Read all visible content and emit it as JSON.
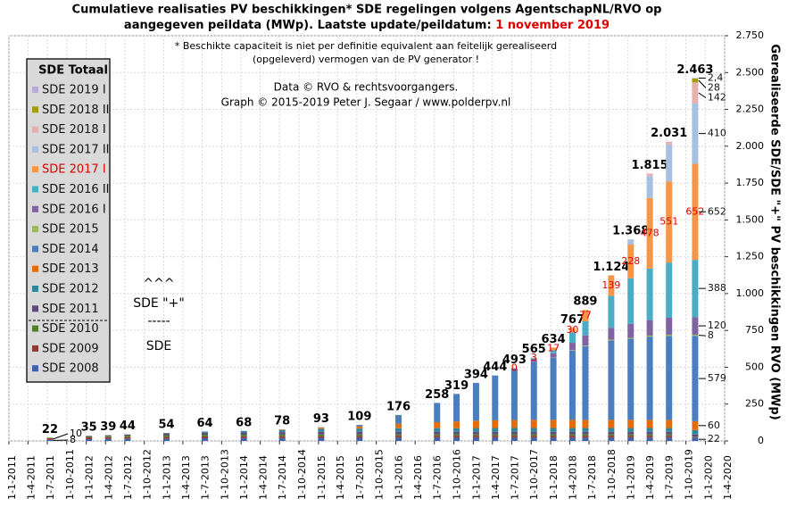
{
  "chart_data": {
    "type": "stacked-bar",
    "title": [
      "Cumulatieve realisaties PV beschikkingen*  SDE regelingen volgens AgentschapNL/RVO  op",
      "aangegeven peildata (MWp). Laatste update/peildatum:"
    ],
    "title_date": "1 november 2019",
    "footnote": [
      "* Beschikte capaciteit is niet per definitie equivalent aan feitelijk gerealiseerd",
      "(opgeleverd) vermogen van de PV generator !"
    ],
    "credits": [
      "Data © RVO & rechtsvoorgangers.",
      "Graph  © 2015-2019  Peter J. Segaar / www.polderpv.nl"
    ],
    "y_label": "Gerealiseerde SDE/SDE \"+\" PV beschikkingen RVO (MWp)",
    "legend_title": "SDE Totaal",
    "annotation": [
      "^^^",
      "SDE \"+\"",
      "-----",
      "SDE"
    ],
    "grid": true,
    "x": [
      "1-7-2011",
      "1-1-2012",
      "1-4-2012",
      "1-7-2012",
      "1-1-2013",
      "1-7-2013",
      "1-1-2014",
      "1-7-2014",
      "1-1-2015",
      "1-7-2015",
      "1-1-2016",
      "1-7-2016",
      "1-10-2016",
      "1-1-2017",
      "1-4-2017",
      "1-7-2017",
      "1-10-2017",
      "1-1-2018",
      "1-4-2018",
      "1-6-2018",
      "1-10-2018",
      "1-1-2019",
      "1-4-2019",
      "1-7-2019",
      "1-11-2019"
    ],
    "xlim": [
      "1-1-2011",
      "1-4-2020"
    ],
    "xticks": [
      "1-1-2011",
      "1-4-2011",
      "1-7-2011",
      "1-10-2011",
      "1-1-2012",
      "1-4-2012",
      "1-7-2012",
      "1-10-2012",
      "1-1-2013",
      "1-4-2013",
      "1-7-2013",
      "1-10-2013",
      "1-1-2014",
      "1-4-2014",
      "1-7-2014",
      "1-10-2014",
      "1-1-2015",
      "1-4-2015",
      "1-7-2015",
      "1-10-2015",
      "1-1-2016",
      "1-4-2016",
      "1-7-2016",
      "1-10-2016",
      "1-1-2017",
      "1-4-2017",
      "1-7-2017",
      "1-10-2017",
      "1-1-2018",
      "1-4-2018",
      "1-7-2018",
      "1-10-2018",
      "1-1-2019",
      "1-4-2019",
      "1-7-2019",
      "1-10-2019",
      "1-1-2020",
      "1-4-2020"
    ],
    "ylim": [
      0,
      2750
    ],
    "yticks": [
      0,
      250,
      500,
      750,
      {
        "value": 1000,
        "label": "1.000"
      },
      {
        "value": 1250,
        "label": "1.250"
      },
      {
        "value": 1500,
        "label": "1.500"
      },
      {
        "value": 1750,
        "label": "1.750"
      },
      {
        "value": 2000,
        "label": "2.000"
      },
      {
        "value": 2250,
        "label": "2.250"
      },
      {
        "value": 2500,
        "label": "2.500"
      },
      {
        "value": 2750,
        "label": "2.750"
      }
    ],
    "totals": {
      "values": [
        22,
        35,
        39,
        44,
        54,
        64,
        68,
        78,
        93,
        109,
        176,
        258,
        319,
        394,
        444,
        493,
        565,
        634,
        767,
        889,
        1124,
        1368,
        1815,
        2031,
        2463
      ],
      "value_labels": [
        "22",
        "35",
        "39",
        "44",
        "54",
        "64",
        "68",
        "78",
        "93",
        "109",
        "176",
        "258",
        "319",
        "394",
        "444",
        "493",
        "565",
        "634",
        "767",
        "889",
        "1.124",
        "1.368",
        "1.815",
        "2.031",
        "2.463"
      ]
    },
    "series": [
      {
        "name": "SDE 2008",
        "color": "#3b64ad",
        "end_label": "22",
        "values": [
          8,
          12,
          13,
          14,
          16,
          18,
          19,
          20,
          21,
          21,
          22,
          22,
          22,
          22,
          22,
          22,
          22,
          22,
          22,
          22,
          22,
          22,
          22,
          22,
          22
        ],
        "value_labels": [
          "8",
          null,
          null,
          null,
          null,
          null,
          null,
          null,
          null,
          null,
          null,
          null,
          null,
          null,
          null,
          null,
          null,
          null,
          null,
          null,
          null,
          null,
          null,
          null,
          null
        ]
      },
      {
        "name": "SDE 2009",
        "color": "#953735",
        "values": [
          10,
          12,
          12,
          12,
          12,
          12,
          12,
          12,
          12,
          12,
          12,
          12,
          12,
          12,
          12,
          12,
          12,
          12,
          12,
          12,
          12,
          12,
          12,
          12,
          4
        ],
        "value_labels": [
          "10",
          null,
          null,
          null,
          null,
          null,
          null,
          null,
          null,
          null,
          null,
          null,
          null,
          null,
          null,
          null,
          null,
          null,
          null,
          null,
          null,
          null,
          null,
          null,
          null
        ]
      },
      {
        "name": "SDE 2010",
        "color": "#4f7f2a",
        "values": [
          4,
          8,
          9,
          10,
          11,
          11,
          11,
          11,
          11,
          11,
          10,
          10,
          10,
          10,
          10,
          10,
          10,
          10,
          10,
          10,
          10,
          10,
          10,
          10,
          4
        ]
      },
      {
        "name": "SDE 2011",
        "color": "#604a7b",
        "values": [
          null,
          3,
          5,
          8,
          12,
          15,
          16,
          17,
          18,
          18,
          18,
          18,
          18,
          18,
          18,
          18,
          18,
          18,
          18,
          18,
          18,
          18,
          18,
          18,
          14
        ]
      },
      {
        "name": "SDE 2012",
        "color": "#31859c",
        "values": [
          null,
          null,
          null,
          null,
          3,
          8,
          10,
          15,
          20,
          22,
          24,
          25,
          25,
          26,
          26,
          26,
          26,
          26,
          26,
          26,
          26,
          26,
          26,
          26,
          30
        ]
      },
      {
        "name": "SDE 2013",
        "color": "#e46c0a",
        "end_label": "60",
        "values": [
          null,
          null,
          null,
          null,
          null,
          null,
          null,
          3,
          8,
          15,
          30,
          40,
          45,
          50,
          52,
          54,
          55,
          55,
          55,
          55,
          55,
          55,
          55,
          55,
          60
        ]
      },
      {
        "name": "SDE 2014",
        "color": "#4a7ebf",
        "end_label": "579",
        "values": [
          null,
          null,
          null,
          null,
          null,
          null,
          null,
          null,
          3,
          10,
          60,
          131,
          187,
          256,
          304,
          351,
          390,
          420,
          470,
          500,
          540,
          550,
          565,
          570,
          579
        ]
      },
      {
        "name": "SDE 2015",
        "color": "#9bbb59",
        "end_label": "8",
        "values": [
          null,
          null,
          null,
          null,
          null,
          null,
          null,
          null,
          null,
          null,
          null,
          null,
          null,
          null,
          null,
          null,
          1,
          2,
          3,
          4,
          5,
          6,
          7,
          8,
          8
        ]
      },
      {
        "name": "SDE 2016 I",
        "color": "#8064a2",
        "end_label": "120",
        "values": [
          null,
          null,
          null,
          null,
          null,
          null,
          null,
          null,
          null,
          null,
          null,
          null,
          null,
          null,
          null,
          null,
          20,
          30,
          50,
          70,
          80,
          95,
          105,
          115,
          120
        ]
      },
      {
        "name": "SDE 2016 II",
        "color": "#4bacc6",
        "end_label": "388",
        "values": [
          null,
          null,
          null,
          null,
          null,
          null,
          null,
          null,
          null,
          null,
          null,
          null,
          null,
          null,
          null,
          null,
          8,
          22,
          71,
          95,
          217,
          310,
          350,
          375,
          388
        ]
      },
      {
        "name": "SDE 2017 I",
        "color": "#f79646",
        "label_color": "#e00000",
        "end_label": "652",
        "values": [
          null,
          null,
          null,
          null,
          null,
          null,
          null,
          null,
          null,
          null,
          null,
          null,
          null,
          null,
          null,
          0,
          3,
          17,
          30,
          77,
          139,
          228,
          478,
          551,
          652
        ],
        "value_labels": [
          null,
          null,
          null,
          null,
          null,
          null,
          null,
          null,
          null,
          null,
          null,
          null,
          null,
          null,
          null,
          "0",
          "3",
          "17",
          "30",
          "77",
          "139",
          "228",
          "478",
          "551",
          "652"
        ]
      },
      {
        "name": "SDE 2017 II",
        "color": "#a7bfe0",
        "end_label": "410",
        "values": [
          null,
          null,
          null,
          null,
          null,
          null,
          null,
          null,
          null,
          null,
          null,
          null,
          null,
          null,
          null,
          null,
          null,
          null,
          null,
          null,
          null,
          36,
          150,
          250,
          410
        ]
      },
      {
        "name": "SDE 2018 I",
        "color": "#e6b0ae",
        "end_label": "142",
        "values": [
          null,
          null,
          null,
          null,
          null,
          null,
          null,
          null,
          null,
          null,
          null,
          null,
          null,
          null,
          null,
          null,
          null,
          null,
          null,
          null,
          null,
          null,
          17,
          19,
          142
        ]
      },
      {
        "name": "SDE 2018 II",
        "color": "#a59d0f",
        "end_label": "28",
        "values": [
          null,
          null,
          null,
          null,
          null,
          null,
          null,
          null,
          null,
          null,
          null,
          null,
          null,
          null,
          null,
          null,
          null,
          null,
          null,
          null,
          null,
          null,
          null,
          null,
          28
        ]
      },
      {
        "name": "SDE 2019 I",
        "color": "#b7a9d8",
        "end_label": "2,4",
        "values": [
          null,
          null,
          null,
          null,
          null,
          null,
          null,
          null,
          null,
          null,
          null,
          null,
          null,
          null,
          null,
          null,
          null,
          null,
          null,
          null,
          null,
          null,
          null,
          null,
          2.4
        ]
      }
    ]
  }
}
